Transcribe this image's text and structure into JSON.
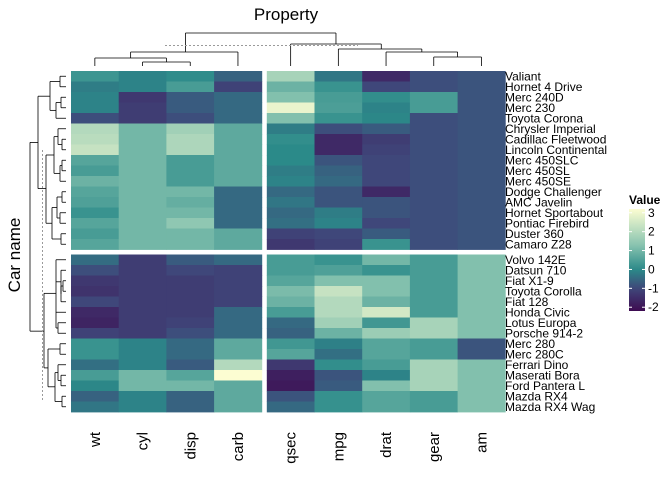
{
  "chart_data": {
    "type": "heatmap",
    "title": "Property",
    "ylabel": "Car name",
    "columns": [
      "wt",
      "cyl",
      "disp",
      "carb",
      "qsec",
      "mpg",
      "drat",
      "gear",
      "am"
    ],
    "column_groups": [
      [
        "wt",
        "cyl",
        "disp",
        "carb"
      ],
      [
        "qsec",
        "mpg",
        "drat",
        "gear",
        "am"
      ]
    ],
    "rows": [
      "Valiant",
      "Hornet 4 Drive",
      "Merc 240D",
      "Merc 230",
      "Toyota Corona",
      "Chrysler Imperial",
      "Cadillac Fleetwood",
      "Lincoln Continental",
      "Merc 450SLC",
      "Merc 450SL",
      "Merc 450SE",
      "Dodge Challenger",
      "AMC Javelin",
      "Hornet Sportabout",
      "Pontiac Firebird",
      "Duster 360",
      "Camaro Z28",
      "Volvo 142E",
      "Datsun 710",
      "Fiat X1-9",
      "Toyota Corolla",
      "Fiat 128",
      "Honda Civic",
      "Lotus Europa",
      "Porsche 914-2",
      "Merc 280",
      "Merc 280C",
      "Ferrari Dino",
      "Maserati Bora",
      "Ford Pantera L",
      "Mazda RX4",
      "Mazda RX4 Wag"
    ],
    "row_group_sizes": [
      17,
      15
    ],
    "values": [
      [
        0.25,
        -0.1,
        0.05,
        -0.6,
        1.8,
        -0.3,
        -1.6,
        -0.9,
        -0.8
      ],
      [
        -0.2,
        -0.1,
        0.4,
        -1.1,
        0.9,
        0.2,
        -1.0,
        -0.9,
        -0.8
      ],
      [
        -0.1,
        -1.3,
        -0.7,
        -0.5,
        1.2,
        0.4,
        0.1,
        0.4,
        -0.8
      ],
      [
        -0.1,
        -1.2,
        -0.7,
        -0.5,
        2.9,
        0.45,
        -0.1,
        0.4,
        -0.8
      ],
      [
        -0.9,
        -1.2,
        -0.9,
        -0.5,
        1.2,
        0.2,
        -0.05,
        -0.9,
        -0.8
      ],
      [
        2.0,
        1.0,
        1.7,
        0.7,
        -0.2,
        -0.9,
        -0.7,
        -0.9,
        -0.8
      ],
      [
        2.1,
        1.0,
        1.9,
        0.7,
        0.1,
        -1.6,
        -1.2,
        -0.9,
        -0.8
      ],
      [
        2.3,
        1.0,
        1.9,
        0.7,
        0.0,
        -1.6,
        -1.1,
        -0.9,
        -0.8
      ],
      [
        0.6,
        1.0,
        0.4,
        0.7,
        0.0,
        -0.8,
        -1.0,
        -0.9,
        -0.8
      ],
      [
        0.4,
        1.0,
        0.4,
        0.7,
        -0.2,
        -0.6,
        -1.0,
        -0.9,
        -0.8
      ],
      [
        0.9,
        1.0,
        0.4,
        0.7,
        -0.1,
        -0.5,
        -1.0,
        -0.9,
        -0.8
      ],
      [
        0.6,
        1.0,
        1.0,
        -0.5,
        -0.5,
        -0.8,
        -1.6,
        -0.9,
        -0.8
      ],
      [
        0.5,
        1.0,
        0.8,
        -0.5,
        -0.3,
        -0.8,
        -0.8,
        -0.9,
        -0.8
      ],
      [
        0.2,
        1.0,
        1.0,
        -0.5,
        -0.5,
        -0.2,
        -0.8,
        -0.9,
        -0.8
      ],
      [
        0.6,
        1.0,
        1.4,
        -0.5,
        -0.4,
        -0.1,
        -1.0,
        -0.9,
        -0.8
      ],
      [
        0.4,
        1.0,
        1.0,
        0.7,
        -1.1,
        -1.0,
        -0.7,
        -0.9,
        -0.8
      ],
      [
        0.6,
        1.0,
        1.0,
        0.7,
        -1.3,
        -1.1,
        0.2,
        -0.9,
        -0.8
      ],
      [
        -0.45,
        -1.2,
        -0.7,
        -0.5,
        0.4,
        0.2,
        1.0,
        0.4,
        1.2
      ],
      [
        -0.9,
        -1.2,
        -1.0,
        -1.1,
        0.4,
        0.5,
        0.2,
        0.4,
        1.2
      ],
      [
        -1.3,
        -1.2,
        -1.2,
        -1.1,
        0.6,
        1.2,
        1.2,
        0.4,
        1.2
      ],
      [
        -1.4,
        -1.2,
        -1.2,
        -1.1,
        1.1,
        2.3,
        1.2,
        0.4,
        1.2
      ],
      [
        -1.0,
        -1.2,
        -1.2,
        -1.1,
        0.9,
        2.0,
        0.9,
        0.4,
        1.2
      ],
      [
        -1.6,
        -1.2,
        -1.2,
        -0.5,
        0.4,
        2.0,
        2.5,
        0.4,
        1.2
      ],
      [
        -1.7,
        -1.2,
        -1.1,
        -0.5,
        -0.5,
        1.7,
        0.3,
        1.8,
        1.2
      ],
      [
        -1.1,
        -1.2,
        -0.9,
        -0.5,
        -0.6,
        0.9,
        1.6,
        1.8,
        1.2
      ],
      [
        0.2,
        -0.1,
        -0.5,
        0.7,
        0.3,
        -0.15,
        0.6,
        0.4,
        -0.8
      ],
      [
        0.2,
        -0.1,
        -0.5,
        0.7,
        0.6,
        -0.4,
        0.6,
        0.4,
        -0.8
      ],
      [
        -0.4,
        -0.1,
        -0.7,
        2.0,
        -1.3,
        0.1,
        0.4,
        1.8,
        1.2
      ],
      [
        0.4,
        1.0,
        0.6,
        3.2,
        -1.8,
        -0.8,
        -0.1,
        1.8,
        1.2
      ],
      [
        -0.05,
        1.0,
        1.0,
        0.7,
        -1.9,
        -0.7,
        1.2,
        1.8,
        1.2
      ],
      [
        -0.6,
        -0.1,
        -0.6,
        0.7,
        -0.8,
        0.15,
        0.6,
        0.4,
        1.2
      ],
      [
        -0.3,
        -0.1,
        -0.6,
        0.7,
        -0.5,
        0.15,
        0.6,
        0.4,
        1.2
      ]
    ],
    "legend": {
      "title": "Value",
      "position": "right",
      "ticks": [
        3,
        2,
        1,
        0,
        -1,
        -2
      ],
      "tick_labels": [
        "3",
        "2",
        "1",
        "0",
        "-1",
        "-2"
      ],
      "range": [
        -2.2,
        3.2
      ]
    },
    "colors": {
      "low": "#3e0b51",
      "mid_low": "#3f477a",
      "mid": "#2b8a89",
      "mid_high": "#89c4b0",
      "high": "#fcfdd2",
      "separator": "#ffffff",
      "dendrogram": "#000000",
      "dendrogram_dashed": "#9a9a9a"
    }
  }
}
